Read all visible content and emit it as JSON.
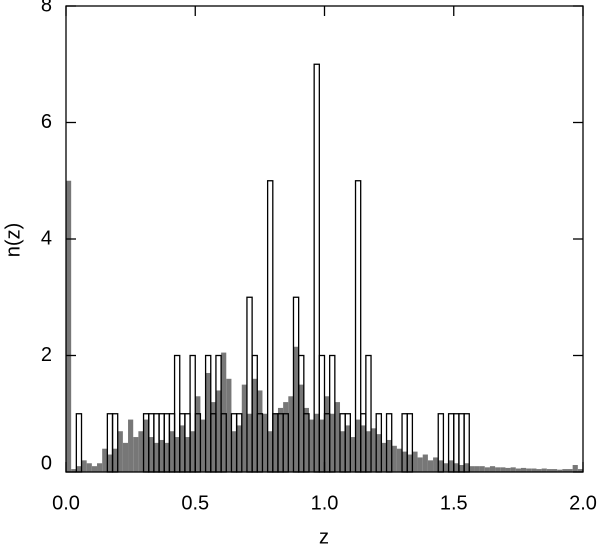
{
  "chart_data": {
    "type": "histogram",
    "xlabel": "z",
    "ylabel": "n(z)",
    "bins": [
      0,
      0.02,
      0.04,
      0.06,
      0.08,
      0.1,
      0.12,
      0.14,
      0.16,
      0.18,
      0.2,
      0.22,
      0.24,
      0.26,
      0.28,
      0.3,
      0.32,
      0.34,
      0.36,
      0.38,
      0.4,
      0.42,
      0.44,
      0.46,
      0.48,
      0.5,
      0.52,
      0.54,
      0.56,
      0.58,
      0.6,
      0.62,
      0.64,
      0.66,
      0.68,
      0.7,
      0.72,
      0.74,
      0.76,
      0.78,
      0.8,
      0.82,
      0.84,
      0.86,
      0.88,
      0.9,
      0.92,
      0.94,
      0.96,
      0.98,
      1.0,
      1.02,
      1.04,
      1.06,
      1.08,
      1.1,
      1.12,
      1.14,
      1.16,
      1.18,
      1.2,
      1.22,
      1.24,
      1.26,
      1.28,
      1.3,
      1.32,
      1.34,
      1.36,
      1.38,
      1.4,
      1.42,
      1.44,
      1.46,
      1.48,
      1.5,
      1.52,
      1.54,
      1.56,
      1.58,
      1.6,
      1.62,
      1.64,
      1.66,
      1.68,
      1.7,
      1.72,
      1.74,
      1.76,
      1.78,
      1.8,
      1.82,
      1.84,
      1.86,
      1.88,
      1.9,
      1.92,
      1.94,
      1.96,
      1.98,
      2.0
    ],
    "series": [
      {
        "style": "filled",
        "color": "#777777",
        "values": [
          5,
          0.05,
          0.1,
          0.2,
          0.15,
          0.1,
          0.15,
          0.4,
          0.3,
          0.4,
          0.7,
          0.5,
          0.9,
          0.6,
          0.7,
          0.9,
          0.6,
          0.5,
          0.55,
          0.5,
          0.7,
          0.6,
          0.8,
          0.6,
          0.7,
          1.3,
          0.9,
          1.7,
          1.2,
          1.4,
          2.05,
          1.6,
          0.7,
          0.8,
          1.5,
          1.0,
          1.6,
          1.4,
          1.0,
          0.7,
          1.0,
          1.1,
          1.2,
          1.3,
          2.15,
          1.5,
          1.1,
          0.9,
          1.0,
          0.9,
          1.3,
          1.0,
          1.2,
          0.7,
          0.8,
          0.6,
          0.9,
          0.8,
          0.7,
          0.75,
          0.65,
          0.5,
          0.55,
          0.45,
          0.4,
          0.35,
          0.3,
          0.35,
          0.25,
          0.3,
          0.2,
          0.25,
          0.2,
          0.15,
          0.2,
          0.15,
          0.12,
          0.15,
          0.1,
          0.1,
          0.1,
          0.08,
          0.1,
          0.08,
          0.08,
          0.07,
          0.08,
          0.06,
          0.07,
          0.06,
          0.06,
          0.05,
          0.06,
          0.05,
          0.05,
          0.04,
          0.05,
          0.05,
          0.12,
          0.05
        ]
      },
      {
        "style": "outline",
        "color": "#000000",
        "values": [
          0,
          0,
          1,
          0,
          0,
          0,
          0,
          0,
          1,
          1,
          0,
          0,
          0,
          0,
          0,
          1,
          1,
          1,
          1,
          1,
          1,
          2,
          1,
          1,
          2,
          1,
          0,
          2,
          1,
          2,
          1,
          0,
          1,
          1,
          0,
          3,
          2,
          1,
          0,
          5,
          1,
          1,
          1,
          0,
          3,
          2,
          1,
          0,
          7,
          2,
          1,
          2,
          0,
          1,
          1,
          0,
          5,
          1,
          2,
          0,
          1,
          0,
          1,
          0,
          0,
          1,
          1,
          0,
          0,
          0,
          0,
          0,
          1,
          0,
          1,
          1,
          1,
          1,
          0,
          0,
          0,
          0,
          0,
          0,
          0,
          0,
          0,
          0,
          0,
          0,
          0,
          0,
          0,
          0,
          0,
          0,
          0,
          0,
          0,
          0
        ]
      }
    ],
    "xlim": [
      0,
      2.0
    ],
    "ylim": [
      0,
      8
    ],
    "xticks": [
      {
        "value": 0,
        "label": "0.0"
      },
      {
        "value": 0.5,
        "label": "0.5"
      },
      {
        "value": 1.0,
        "label": "1.0"
      },
      {
        "value": 1.5,
        "label": "1.5"
      },
      {
        "value": 2.0,
        "label": "2.0"
      }
    ],
    "yticks": [
      0,
      2,
      4,
      6,
      8
    ]
  }
}
